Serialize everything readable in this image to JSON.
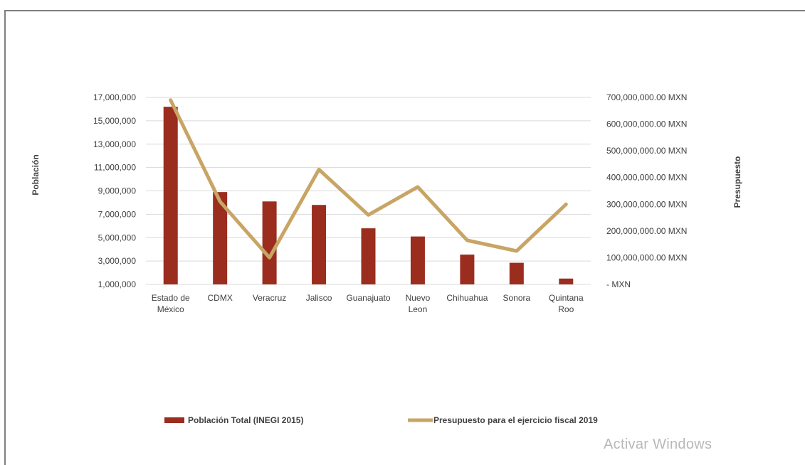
{
  "chart_data": {
    "type": "bar",
    "categories": [
      [
        "Estado de",
        "México"
      ],
      [
        "CDMX"
      ],
      [
        "Veracruz"
      ],
      [
        "Jalisco"
      ],
      [
        "Guanajuato"
      ],
      [
        "Nuevo",
        "Leon"
      ],
      [
        "Chihuahua"
      ],
      [
        "Sonora"
      ],
      [
        "Quintana",
        "Roo"
      ]
    ],
    "series": [
      {
        "name": "Población Total (INEGI 2015)",
        "type": "bar",
        "axis": "left",
        "color": "#9b2d1f",
        "values": [
          16200000,
          8900000,
          8100000,
          7800000,
          5800000,
          5100000,
          3550000,
          2850000,
          1500000
        ]
      },
      {
        "name": "Presupuesto para el ejercicio fiscal 2019",
        "type": "line",
        "axis": "right",
        "color": "#c8a565",
        "values": [
          690000000,
          310000000,
          100000000,
          430000000,
          260000000,
          365000000,
          165000000,
          125000000,
          300000000
        ]
      }
    ],
    "y_left": {
      "label": "Población",
      "min": 1000000,
      "max": 17000000,
      "ticks": [
        1000000,
        3000000,
        5000000,
        7000000,
        9000000,
        11000000,
        13000000,
        15000000,
        17000000
      ],
      "tick_labels": [
        "1,000,000",
        "3,000,000",
        "5,000,000",
        "7,000,000",
        "9,000,000",
        "11,000,000",
        "13,000,000",
        "15,000,000",
        "17,000,000"
      ]
    },
    "y_right": {
      "label": "Presupuesto",
      "min": 0,
      "max": 700000000,
      "ticks": [
        0,
        100000000,
        200000000,
        300000000,
        400000000,
        500000000,
        600000000,
        700000000
      ],
      "tick_labels": [
        "-   MXN",
        "100,000,000.00 MXN",
        "200,000,000.00 MXN",
        "300,000,000.00 MXN",
        "400,000,000.00 MXN",
        "500,000,000.00 MXN",
        "600,000,000.00 MXN",
        "700,000,000.00 MXN"
      ]
    },
    "grid": true,
    "legend_position": "bottom"
  },
  "watermark": "Activar Windows"
}
